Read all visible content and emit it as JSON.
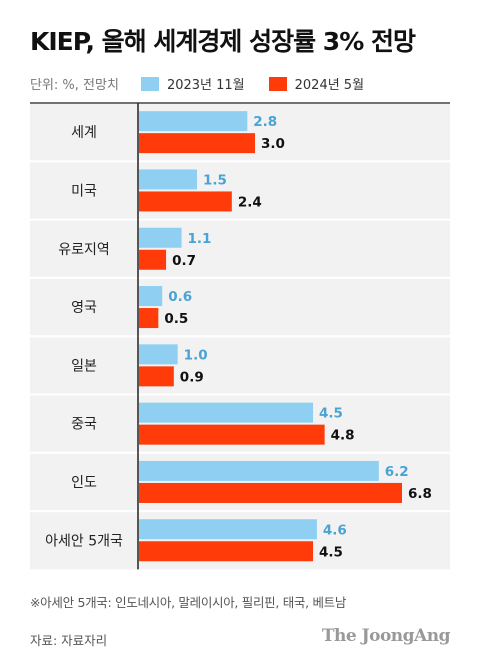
{
  "title": "KIEP, 올해 세계경제 성장률 3% 전망",
  "unit_label": "단위: %, 전망치",
  "note": "※아세안 5개국: 인도네시아, 말레이시아, 필리핀, 태국, 베트남",
  "source": "자료: 자료자리",
  "brand": "The JoongAng",
  "colors": {
    "series1": "#8ecff2",
    "series1_label": "#4aa3d4",
    "series2": "#ff3b0a",
    "series2_label": "#111111",
    "row_fill": "#f2f2f2"
  },
  "chart_data": {
    "type": "bar",
    "orientation": "horizontal",
    "title": "KIEP, 올해 세계경제 성장률 3% 전망",
    "categories": [
      "세계",
      "미국",
      "유로지역",
      "영국",
      "일본",
      "중국",
      "인도",
      "아세안 5개국"
    ],
    "series": [
      {
        "name": "2023년 11월",
        "values": [
          2.8,
          1.5,
          1.1,
          0.6,
          1.0,
          4.5,
          6.2,
          4.6
        ],
        "labels": [
          "2.8",
          "1.5",
          "1.1",
          "0.6",
          "1.0",
          "4.5",
          "6.2",
          "4.6"
        ]
      },
      {
        "name": "2024년 5월",
        "values": [
          3.0,
          2.4,
          0.7,
          0.5,
          0.9,
          4.8,
          6.8,
          4.5
        ],
        "labels": [
          "3.0",
          "2.4",
          "0.7",
          "0.5",
          "0.9",
          "4.8",
          "6.8",
          "4.5"
        ]
      }
    ],
    "xlim": [
      0,
      6.8
    ],
    "legend_position": "top-left",
    "grid": false
  }
}
